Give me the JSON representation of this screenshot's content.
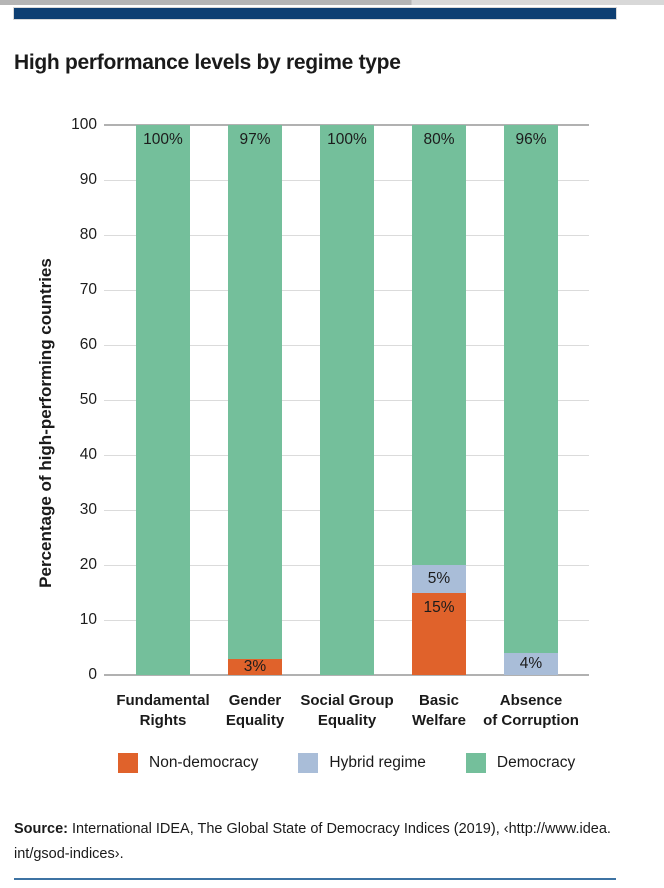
{
  "header": {
    "bar_color": "#0E3F72"
  },
  "chart_data": {
    "type": "bar",
    "stacked": true,
    "title": "High performance levels by regime type",
    "xlabel": "",
    "ylabel": "Percentage of high-performing countries",
    "ylim": [
      0,
      100
    ],
    "yticks": [
      0,
      10,
      20,
      30,
      40,
      50,
      60,
      70,
      80,
      90,
      100
    ],
    "grid": "horizontal",
    "legend_position": "bottom",
    "value_label_suffix": "%",
    "categories": [
      "Fundamental\nRights",
      "Gender\nEquality",
      "Social Group\nEquality",
      "Basic\nWelfare",
      "Absence\nof Corruption"
    ],
    "series": [
      {
        "name": "Non-democracy",
        "color": "#E0622B",
        "values": [
          0,
          3,
          0,
          15,
          0
        ]
      },
      {
        "name": "Hybrid regime",
        "color": "#A9BDD8",
        "values": [
          0,
          0,
          0,
          5,
          4
        ]
      },
      {
        "name": "Democracy",
        "color": "#74BF9B",
        "values": [
          100,
          97,
          100,
          80,
          96
        ]
      }
    ],
    "segment_labels": {
      "Non-democracy": [
        "",
        "3%",
        "",
        "15%",
        ""
      ],
      "Hybrid regime": [
        "",
        "",
        "",
        "5%",
        "4%"
      ],
      "Democracy": [
        "100%",
        "97%",
        "100%",
        "80%",
        "96%"
      ]
    }
  },
  "source": {
    "label": "Source:",
    "line1_rest": " International IDEA, The Global State of Democracy Indices (2019), ‹http://www.idea.",
    "line2": "int/gsod-indices›."
  },
  "footer": {
    "rule_color": "#3E73A3"
  }
}
